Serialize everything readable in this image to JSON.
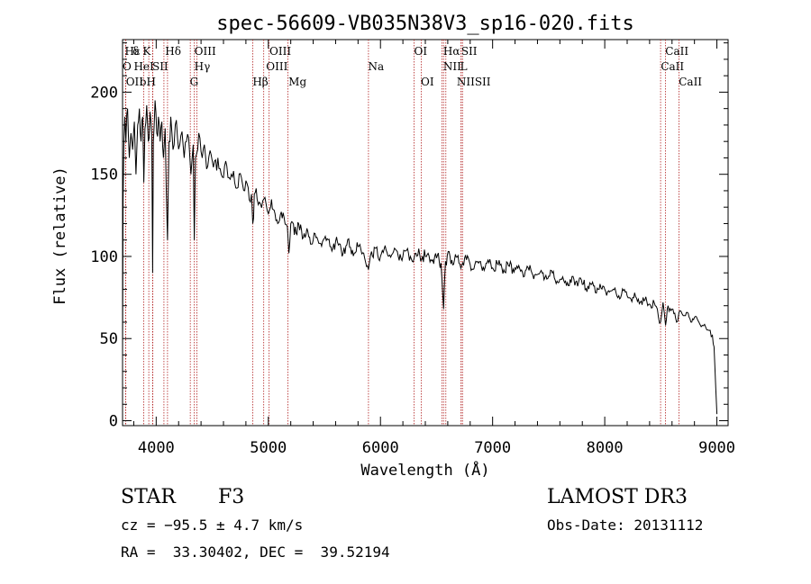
{
  "chart_data": {
    "type": "line",
    "title": "spec-56609-VB035N38V3_sp16-020.fits",
    "xlabel": "Wavelength (Å)",
    "ylabel": "Flux (relative)",
    "xlim": [
      3700,
      9100
    ],
    "ylim": [
      -3,
      232
    ],
    "xticks": [
      4000,
      5000,
      6000,
      7000,
      8000,
      9000
    ],
    "xtick_labels": [
      "4000",
      "5000",
      "6000",
      "7000",
      "8000",
      "9000"
    ],
    "yticks": [
      0,
      50,
      100,
      150,
      200
    ],
    "ytick_labels": [
      "0",
      "50",
      "100",
      "150",
      "200"
    ],
    "grid": false,
    "series": [
      {
        "name": "spectrum",
        "x": [
          3700,
          3705,
          3712,
          3720,
          3730,
          3745,
          3760,
          3775,
          3790,
          3805,
          3820,
          3835,
          3850,
          3865,
          3880,
          3890,
          3900,
          3915,
          3930,
          3945,
          3960,
          3968,
          3975,
          3990,
          4005,
          4020,
          4035,
          4050,
          4065,
          4080,
          4101,
          4115,
          4130,
          4150,
          4170,
          4190,
          4210,
          4230,
          4250,
          4270,
          4290,
          4310,
          4330,
          4340,
          4350,
          4370,
          4390,
          4410,
          4430,
          4460,
          4490,
          4520,
          4550,
          4580,
          4610,
          4640,
          4670,
          4700,
          4730,
          4760,
          4790,
          4820,
          4850,
          4861,
          4875,
          4900,
          4930,
          4960,
          4990,
          5020,
          5060,
          5100,
          5140,
          5170,
          5183,
          5200,
          5240,
          5280,
          5320,
          5360,
          5400,
          5450,
          5500,
          5550,
          5600,
          5650,
          5700,
          5750,
          5800,
          5850,
          5893,
          5920,
          5960,
          6000,
          6050,
          6100,
          6150,
          6200,
          6250,
          6300,
          6350,
          6400,
          6450,
          6500,
          6540,
          6563,
          6580,
          6620,
          6660,
          6700,
          6750,
          6800,
          6850,
          6900,
          6950,
          7000,
          7050,
          7100,
          7150,
          7200,
          7250,
          7300,
          7350,
          7400,
          7450,
          7500,
          7550,
          7600,
          7650,
          7700,
          7750,
          7800,
          7850,
          7900,
          7950,
          8000,
          8050,
          8100,
          8150,
          8200,
          8250,
          8300,
          8350,
          8400,
          8450,
          8498,
          8520,
          8542,
          8565,
          8600,
          8640,
          8662,
          8690,
          8720,
          8760,
          8800,
          8840,
          8870,
          8900,
          8930,
          8960,
          8975,
          8990,
          9000
        ],
        "y": [
          40,
          135,
          170,
          185,
          170,
          190,
          160,
          175,
          165,
          182,
          150,
          180,
          190,
          170,
          185,
          145,
          178,
          192,
          170,
          188,
          175,
          90,
          170,
          195,
          175,
          185,
          170,
          182,
          160,
          178,
          110,
          170,
          185,
          165,
          180,
          172,
          168,
          176,
          160,
          170,
          172,
          150,
          168,
          110,
          160,
          165,
          172,
          160,
          168,
          155,
          162,
          158,
          160,
          150,
          155,
          148,
          150,
          145,
          142,
          148,
          140,
          142,
          138,
          120,
          138,
          135,
          132,
          135,
          128,
          130,
          126,
          122,
          124,
          118,
          102,
          120,
          118,
          116,
          114,
          112,
          110,
          108,
          111,
          106,
          109,
          104,
          107,
          104,
          106,
          102,
          92,
          103,
          105,
          100,
          104,
          101,
          103,
          100,
          102,
          99,
          101,
          100,
          98,
          99,
          96,
          68,
          97,
          100,
          98,
          96,
          99,
          95,
          97,
          94,
          96,
          93,
          95,
          92,
          94,
          93,
          91,
          92,
          90,
          89,
          90,
          88,
          87,
          86,
          85,
          84,
          85,
          83,
          82,
          82,
          80,
          80,
          79,
          78,
          77,
          76,
          75,
          74,
          73,
          71,
          70,
          60,
          72,
          58,
          70,
          68,
          60,
          66,
          65,
          64,
          62,
          63,
          60,
          58,
          57,
          55,
          52,
          45,
          20,
          4
        ]
      }
    ],
    "lines": [
      {
        "label": "Hε",
        "x": 3970
      },
      {
        "label": "K",
        "x": 3934
      },
      {
        "label": "Hδ",
        "x": 4101
      },
      {
        "label": "OIII",
        "x": 4363
      },
      {
        "label": "OIII",
        "x": 5007
      },
      {
        "label": "OII",
        "x": 3727
      },
      {
        "label": "HeI",
        "x": 3889
      },
      {
        "label": "SII",
        "x": 4069
      },
      {
        "label": "Hγ",
        "x": 4340
      },
      {
        "label": "OIII",
        "x": 4959
      },
      {
        "label": "Na",
        "x": 5893
      },
      {
        "label": "NII",
        "x": 6548
      },
      {
        "label": "SII",
        "x": 6717
      },
      {
        "label": "CaII",
        "x": 8542
      },
      {
        "label": "OII",
        "x": 3729
      },
      {
        "label": "H",
        "x": 3968
      },
      {
        "label": "G",
        "x": 4304
      },
      {
        "label": "Hβ",
        "x": 4861
      },
      {
        "label": "Mg",
        "x": 5175
      },
      {
        "label": "OI",
        "x": 6363
      },
      {
        "label": "NII",
        "x": 6583
      },
      {
        "label": "SII",
        "x": 6731
      },
      {
        "label": "CaII",
        "x": 8662
      },
      {
        "label": "OI",
        "x": 6300
      },
      {
        "label": "Hα",
        "x": 6563
      },
      {
        "label": "SII",
        "x": 6731
      },
      {
        "label": "CaII",
        "x": 8498
      }
    ],
    "line_label_rows": [
      [
        {
          "label": "Hε",
          "x": 3720
        },
        {
          "label": "δ",
          "x": 3790
        },
        {
          "label": "K",
          "x": 3880
        },
        {
          "label": "Hδ",
          "x": 4080
        },
        {
          "label": "OIII",
          "x": 4340
        },
        {
          "label": "OIII",
          "x": 5010
        },
        {
          "label": "OI",
          "x": 6300
        },
        {
          "label": "Hα",
          "x": 6560
        },
        {
          "label": "SII",
          "x": 6720
        },
        {
          "label": "CaII",
          "x": 8540
        }
      ],
      [
        {
          "label": "O",
          "x": 3700
        },
        {
          "label": "HeI",
          "x": 3800
        },
        {
          "label": "SII",
          "x": 3965
        },
        {
          "label": "Hγ",
          "x": 4340
        },
        {
          "label": "OIII",
          "x": 4980
        },
        {
          "label": "Na",
          "x": 5890
        },
        {
          "label": "NII",
          "x": 6560
        },
        {
          "label": "L",
          "x": 6710
        },
        {
          "label": "CaII",
          "x": 8500
        }
      ],
      [
        {
          "label": "OII",
          "x": 3730
        },
        {
          "label": "oH",
          "x": 3855
        },
        {
          "label": "G",
          "x": 4300
        },
        {
          "label": "Hβ",
          "x": 4860
        },
        {
          "label": "Mg",
          "x": 5180
        },
        {
          "label": "OI",
          "x": 6360
        },
        {
          "label": "NIISII",
          "x": 6680
        },
        {
          "label": "CaII",
          "x": 8660
        }
      ]
    ]
  },
  "footer": {
    "class_label": "STAR",
    "subclass": "F3",
    "survey": "LAMOST DR3",
    "cz": "cz = −95.5 ± 4.7 km/s",
    "obs_date": "Obs-Date: 20131112",
    "coords": "RA =  33.30402, DEC =  39.52194"
  }
}
